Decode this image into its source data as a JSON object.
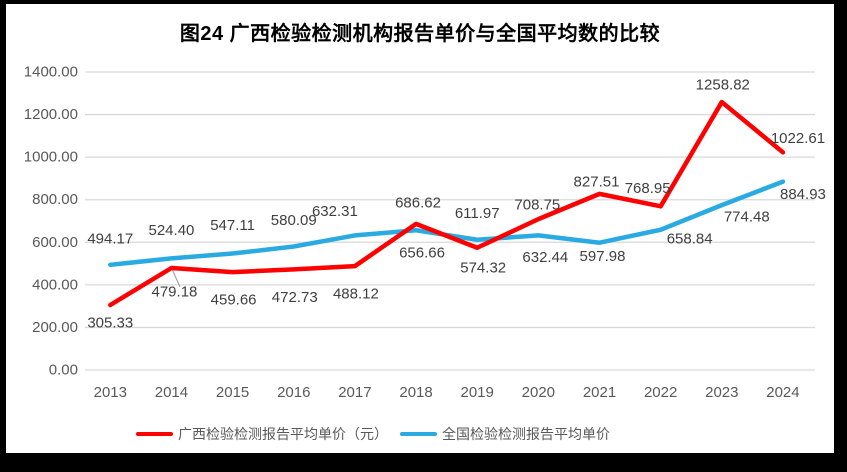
{
  "chart_data": {
    "type": "line",
    "title": "图24  广西检验检测机构报告单价与全国平均数的比较",
    "categories": [
      "2013",
      "2014",
      "2015",
      "2016",
      "2017",
      "2018",
      "2019",
      "2020",
      "2021",
      "2022",
      "2023",
      "2024"
    ],
    "series": [
      {
        "name": "广西检验检测报告平均单价（元）",
        "color": "#FF0000",
        "values": [
          305.33,
          479.18,
          459.66,
          472.73,
          488.12,
          686.62,
          574.32,
          708.75,
          827.51,
          768.95,
          1258.82,
          1022.61
        ]
      },
      {
        "name": "全国检验检测报告平均单价",
        "color": "#29ABE2",
        "values": [
          494.17,
          524.4,
          547.11,
          580.09,
          632.31,
          656.66,
          611.97,
          632.44,
          597.98,
          658.84,
          774.48,
          884.93
        ]
      }
    ],
    "y_ticks": [
      "0.00",
      "200.00",
      "400.00",
      "600.00",
      "800.00",
      "1000.00",
      "1200.00",
      "1400.00"
    ],
    "y_tick_step": 200,
    "ylim": [
      0,
      1400
    ],
    "grid": "horizontal",
    "legend_position": "bottom",
    "data_labels": "all",
    "colors": {
      "gridline": "#D9D9D9",
      "axis_text": "#595959",
      "data_label_text": "#404040",
      "leader_line": "#A6A6A6",
      "background": "#FFFFFF",
      "frame": "#000000"
    }
  }
}
